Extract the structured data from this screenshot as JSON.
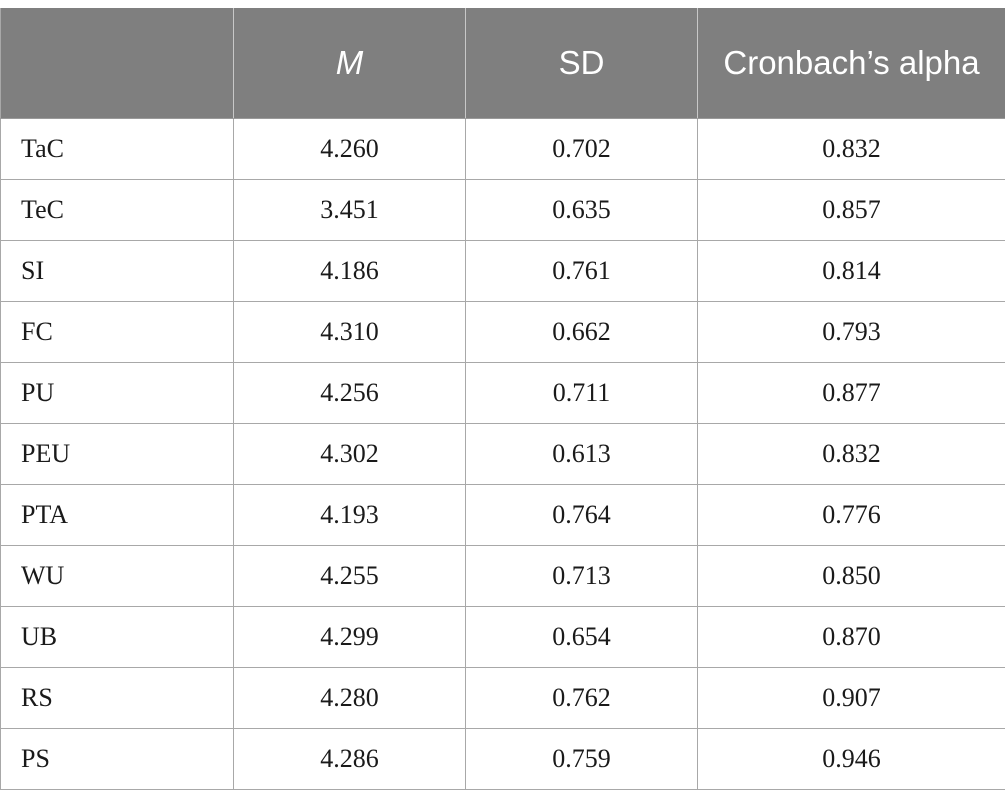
{
  "table": {
    "headers": [
      {
        "label": "",
        "italic": false
      },
      {
        "label": "M",
        "italic": true
      },
      {
        "label": "SD",
        "italic": false
      },
      {
        "label": "Cronbach’s alpha",
        "italic": false
      }
    ],
    "rows": [
      {
        "name": "TaC",
        "m": "4.260",
        "sd": "0.702",
        "alpha": "0.832"
      },
      {
        "name": "TeC",
        "m": "3.451",
        "sd": "0.635",
        "alpha": "0.857"
      },
      {
        "name": "SI",
        "m": "4.186",
        "sd": "0.761",
        "alpha": "0.814"
      },
      {
        "name": "FC",
        "m": "4.310",
        "sd": "0.662",
        "alpha": "0.793"
      },
      {
        "name": "PU",
        "m": "4.256",
        "sd": "0.711",
        "alpha": "0.877"
      },
      {
        "name": "PEU",
        "m": "4.302",
        "sd": "0.613",
        "alpha": "0.832"
      },
      {
        "name": "PTA",
        "m": "4.193",
        "sd": "0.764",
        "alpha": "0.776"
      },
      {
        "name": "WU",
        "m": "4.255",
        "sd": "0.713",
        "alpha": "0.850"
      },
      {
        "name": "UB",
        "m": "4.299",
        "sd": "0.654",
        "alpha": "0.870"
      },
      {
        "name": "RS",
        "m": "4.280",
        "sd": "0.762",
        "alpha": "0.907"
      },
      {
        "name": "PS",
        "m": "4.286",
        "sd": "0.759",
        "alpha": "0.946"
      }
    ]
  },
  "colors": {
    "header_bg": "#7f7f7f",
    "header_text": "#ffffff",
    "grid_line": "#a8a8a8"
  }
}
